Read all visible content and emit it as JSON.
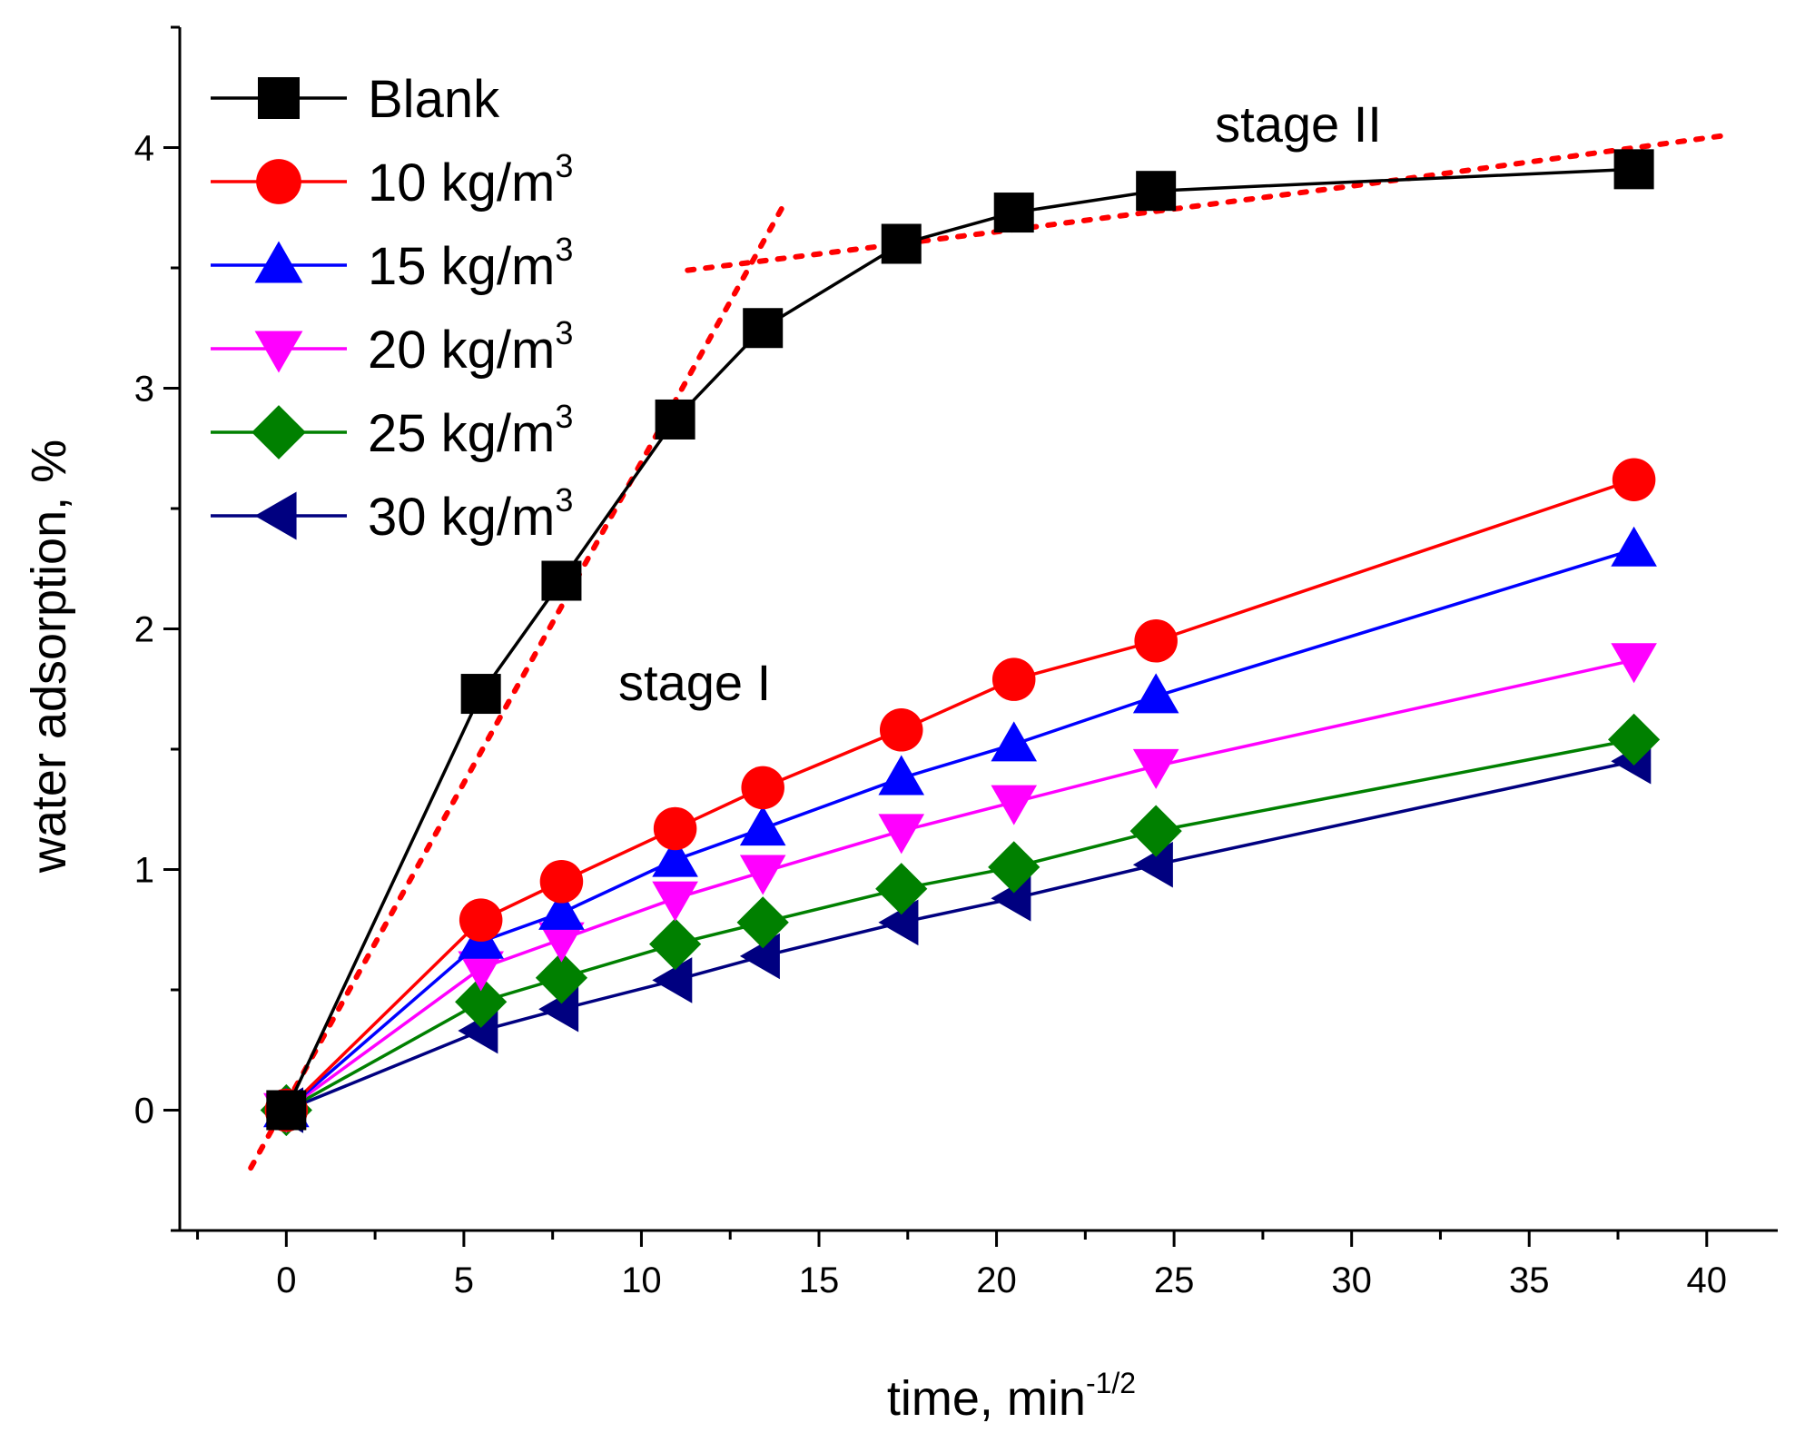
{
  "chart_data": {
    "type": "line",
    "title": "",
    "xlabel": "time, min",
    "xlabel_sup": "-1/2",
    "ylabel": "water adsorption, %",
    "xlim": [
      -3,
      42
    ],
    "ylim": [
      -0.5,
      4.5
    ],
    "xticks": [
      0,
      5,
      10,
      15,
      20,
      25,
      30,
      35,
      40
    ],
    "yticks": [
      0,
      1,
      2,
      3,
      4
    ],
    "x": [
      0,
      5.48,
      7.75,
      10.95,
      13.42,
      17.32,
      20.49,
      24.49,
      37.95
    ],
    "series": [
      {
        "name": "Blank",
        "unit": "",
        "color": "#000000",
        "marker": "square",
        "values": [
          0,
          1.73,
          2.2,
          2.87,
          3.25,
          3.6,
          3.73,
          3.82,
          3.91
        ]
      },
      {
        "name": "10 kg/m",
        "unit": "3",
        "color": "#ff0000",
        "marker": "circle",
        "values": [
          0,
          0.79,
          0.95,
          1.17,
          1.34,
          1.58,
          1.79,
          1.95,
          2.62
        ]
      },
      {
        "name": "15 kg/m",
        "unit": "3",
        "color": "#0000ff",
        "marker": "triangle-up",
        "values": [
          0,
          0.7,
          0.82,
          1.04,
          1.17,
          1.38,
          1.52,
          1.72,
          2.33
        ]
      },
      {
        "name": "20 kg/m",
        "unit": "3",
        "color": "#ff00ff",
        "marker": "triangle-down",
        "values": [
          0,
          0.59,
          0.71,
          0.88,
          0.99,
          1.16,
          1.28,
          1.43,
          1.87
        ]
      },
      {
        "name": "25 kg/m",
        "unit": "3",
        "color": "#008000",
        "marker": "diamond",
        "values": [
          0,
          0.45,
          0.55,
          0.69,
          0.78,
          0.92,
          1.01,
          1.16,
          1.54
        ]
      },
      {
        "name": "30 kg/m",
        "unit": "3",
        "color": "#000080",
        "marker": "triangle-left",
        "values": [
          0,
          0.33,
          0.42,
          0.54,
          0.64,
          0.78,
          0.88,
          1.02,
          1.45
        ]
      }
    ],
    "fit_lines": [
      {
        "label": "stage I fit",
        "color": "#ff0000",
        "style": "dotted",
        "points": [
          [
            -1,
            -0.24
          ],
          [
            14,
            3.76
          ]
        ]
      },
      {
        "label": "stage II fit",
        "color": "#ff0000",
        "style": "dotted",
        "points": [
          [
            11.3,
            3.49
          ],
          [
            20,
            3.65
          ],
          [
            30,
            3.84
          ],
          [
            40.5,
            4.05
          ]
        ]
      }
    ],
    "annotations": [
      {
        "text": "stage II",
        "x": 28.5,
        "y": 4.1
      },
      {
        "text": "stage I",
        "x": 11.5,
        "y": 1.78
      }
    ],
    "legend_position": "top-left"
  }
}
